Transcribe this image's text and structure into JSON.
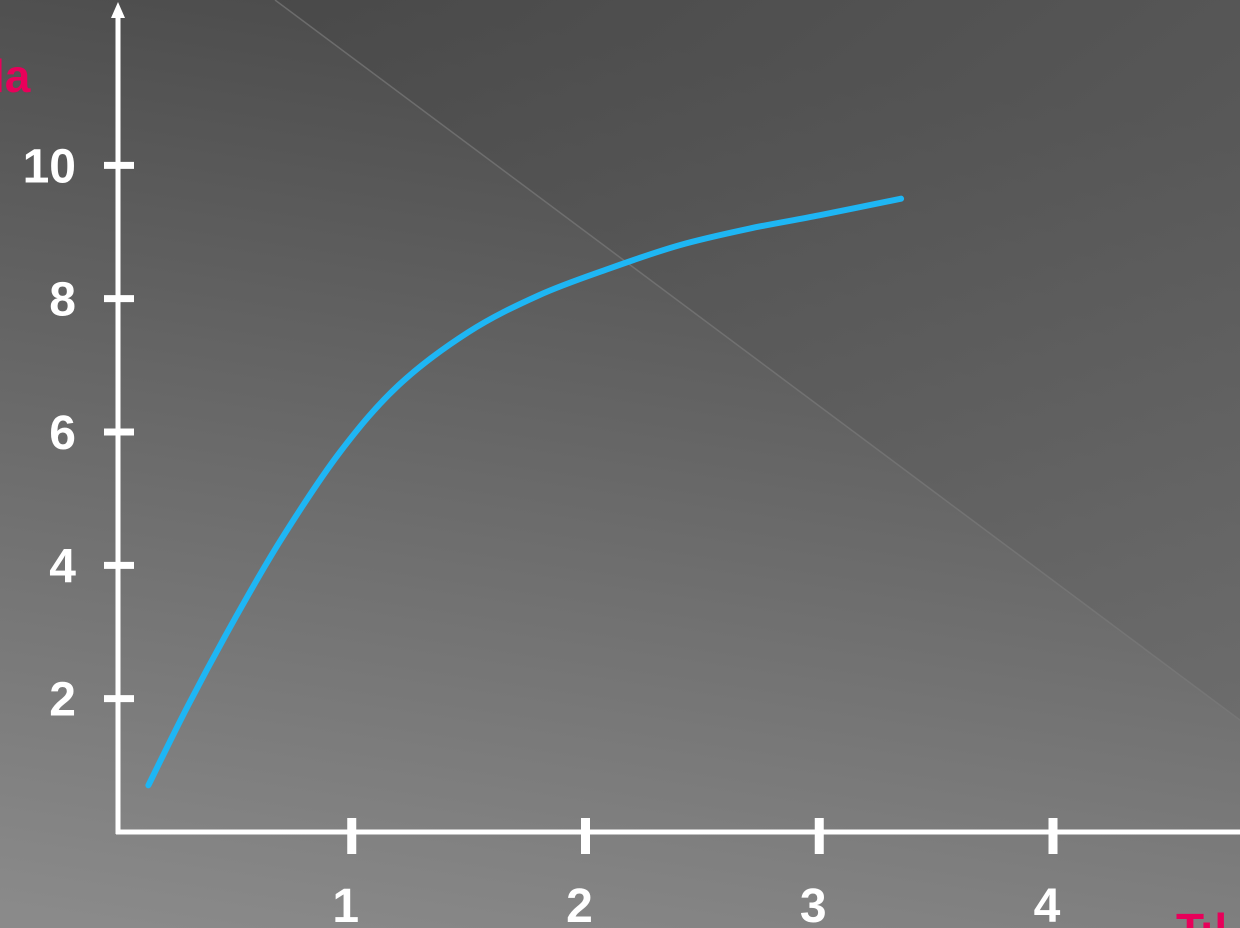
{
  "chart_data": {
    "type": "line",
    "title": "",
    "xlabel": "T:l",
    "ylabel": "la",
    "xlim": [
      0,
      4.8
    ],
    "ylim": [
      0,
      12.3
    ],
    "x_ticks": [
      {
        "value": 1,
        "label": "1"
      },
      {
        "value": 2,
        "label": "2"
      },
      {
        "value": 3,
        "label": "3"
      },
      {
        "value": 4,
        "label": "4"
      }
    ],
    "y_ticks": [
      {
        "value": 2,
        "label": "2"
      },
      {
        "value": 4,
        "label": "4"
      },
      {
        "value": 6,
        "label": "6"
      },
      {
        "value": 8,
        "label": "8"
      },
      {
        "value": 10,
        "label": "10"
      }
    ],
    "grid": false,
    "legend": "none",
    "series": [
      {
        "x": [
          0.13,
          0.3,
          0.5,
          0.7,
          0.95,
          1.2,
          1.5,
          1.8,
          2.1,
          2.4,
          2.7,
          3.0,
          3.35
        ],
        "y": [
          0.7,
          1.9,
          3.2,
          4.4,
          5.7,
          6.7,
          7.5,
          8.05,
          8.45,
          8.8,
          9.05,
          9.25,
          9.5
        ]
      }
    ],
    "colors": {
      "line": "#1EB6F4",
      "axis": "#FFFFFF",
      "tick_label": "#FFFFFF",
      "axis_title": "#E8005A",
      "background_top": "#4A4A4A",
      "background_bottom": "#8C8C8C"
    }
  }
}
